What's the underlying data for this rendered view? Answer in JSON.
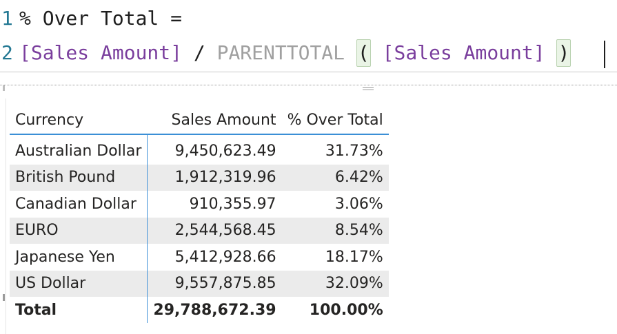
{
  "editor": {
    "line1_number": "1",
    "line1_text": "% Over Total =",
    "line2_number": "2",
    "line2_measure": "[Sales Amount]",
    "line2_operator": "/",
    "line2_function": "PARENTTOTAL",
    "line2_open_paren": "(",
    "line2_arg": "[Sales Amount]",
    "line2_close_paren": ")"
  },
  "table": {
    "headers": [
      "Currency",
      "Sales Amount",
      "% Over Total"
    ],
    "rows": [
      [
        "Australian Dollar",
        "9,450,623.49",
        "31.73%"
      ],
      [
        "British Pound",
        "1,912,319.96",
        "6.42%"
      ],
      [
        "Canadian Dollar",
        "910,355.97",
        "3.06%"
      ],
      [
        "EURO",
        "2,544,568.45",
        "8.54%"
      ],
      [
        "Japanese Yen",
        "5,412,928.66",
        "18.17%"
      ],
      [
        "US Dollar",
        "9,557,875.85",
        "32.09%"
      ]
    ],
    "total": [
      "Total",
      "29,788,672.39",
      "100.00%"
    ]
  },
  "colors": {
    "measure": "#7a3e9d",
    "function": "#a0a0a0",
    "line_number": "#237893",
    "header_rule": "#3b8fd6",
    "banded_row": "#ebebeb"
  }
}
